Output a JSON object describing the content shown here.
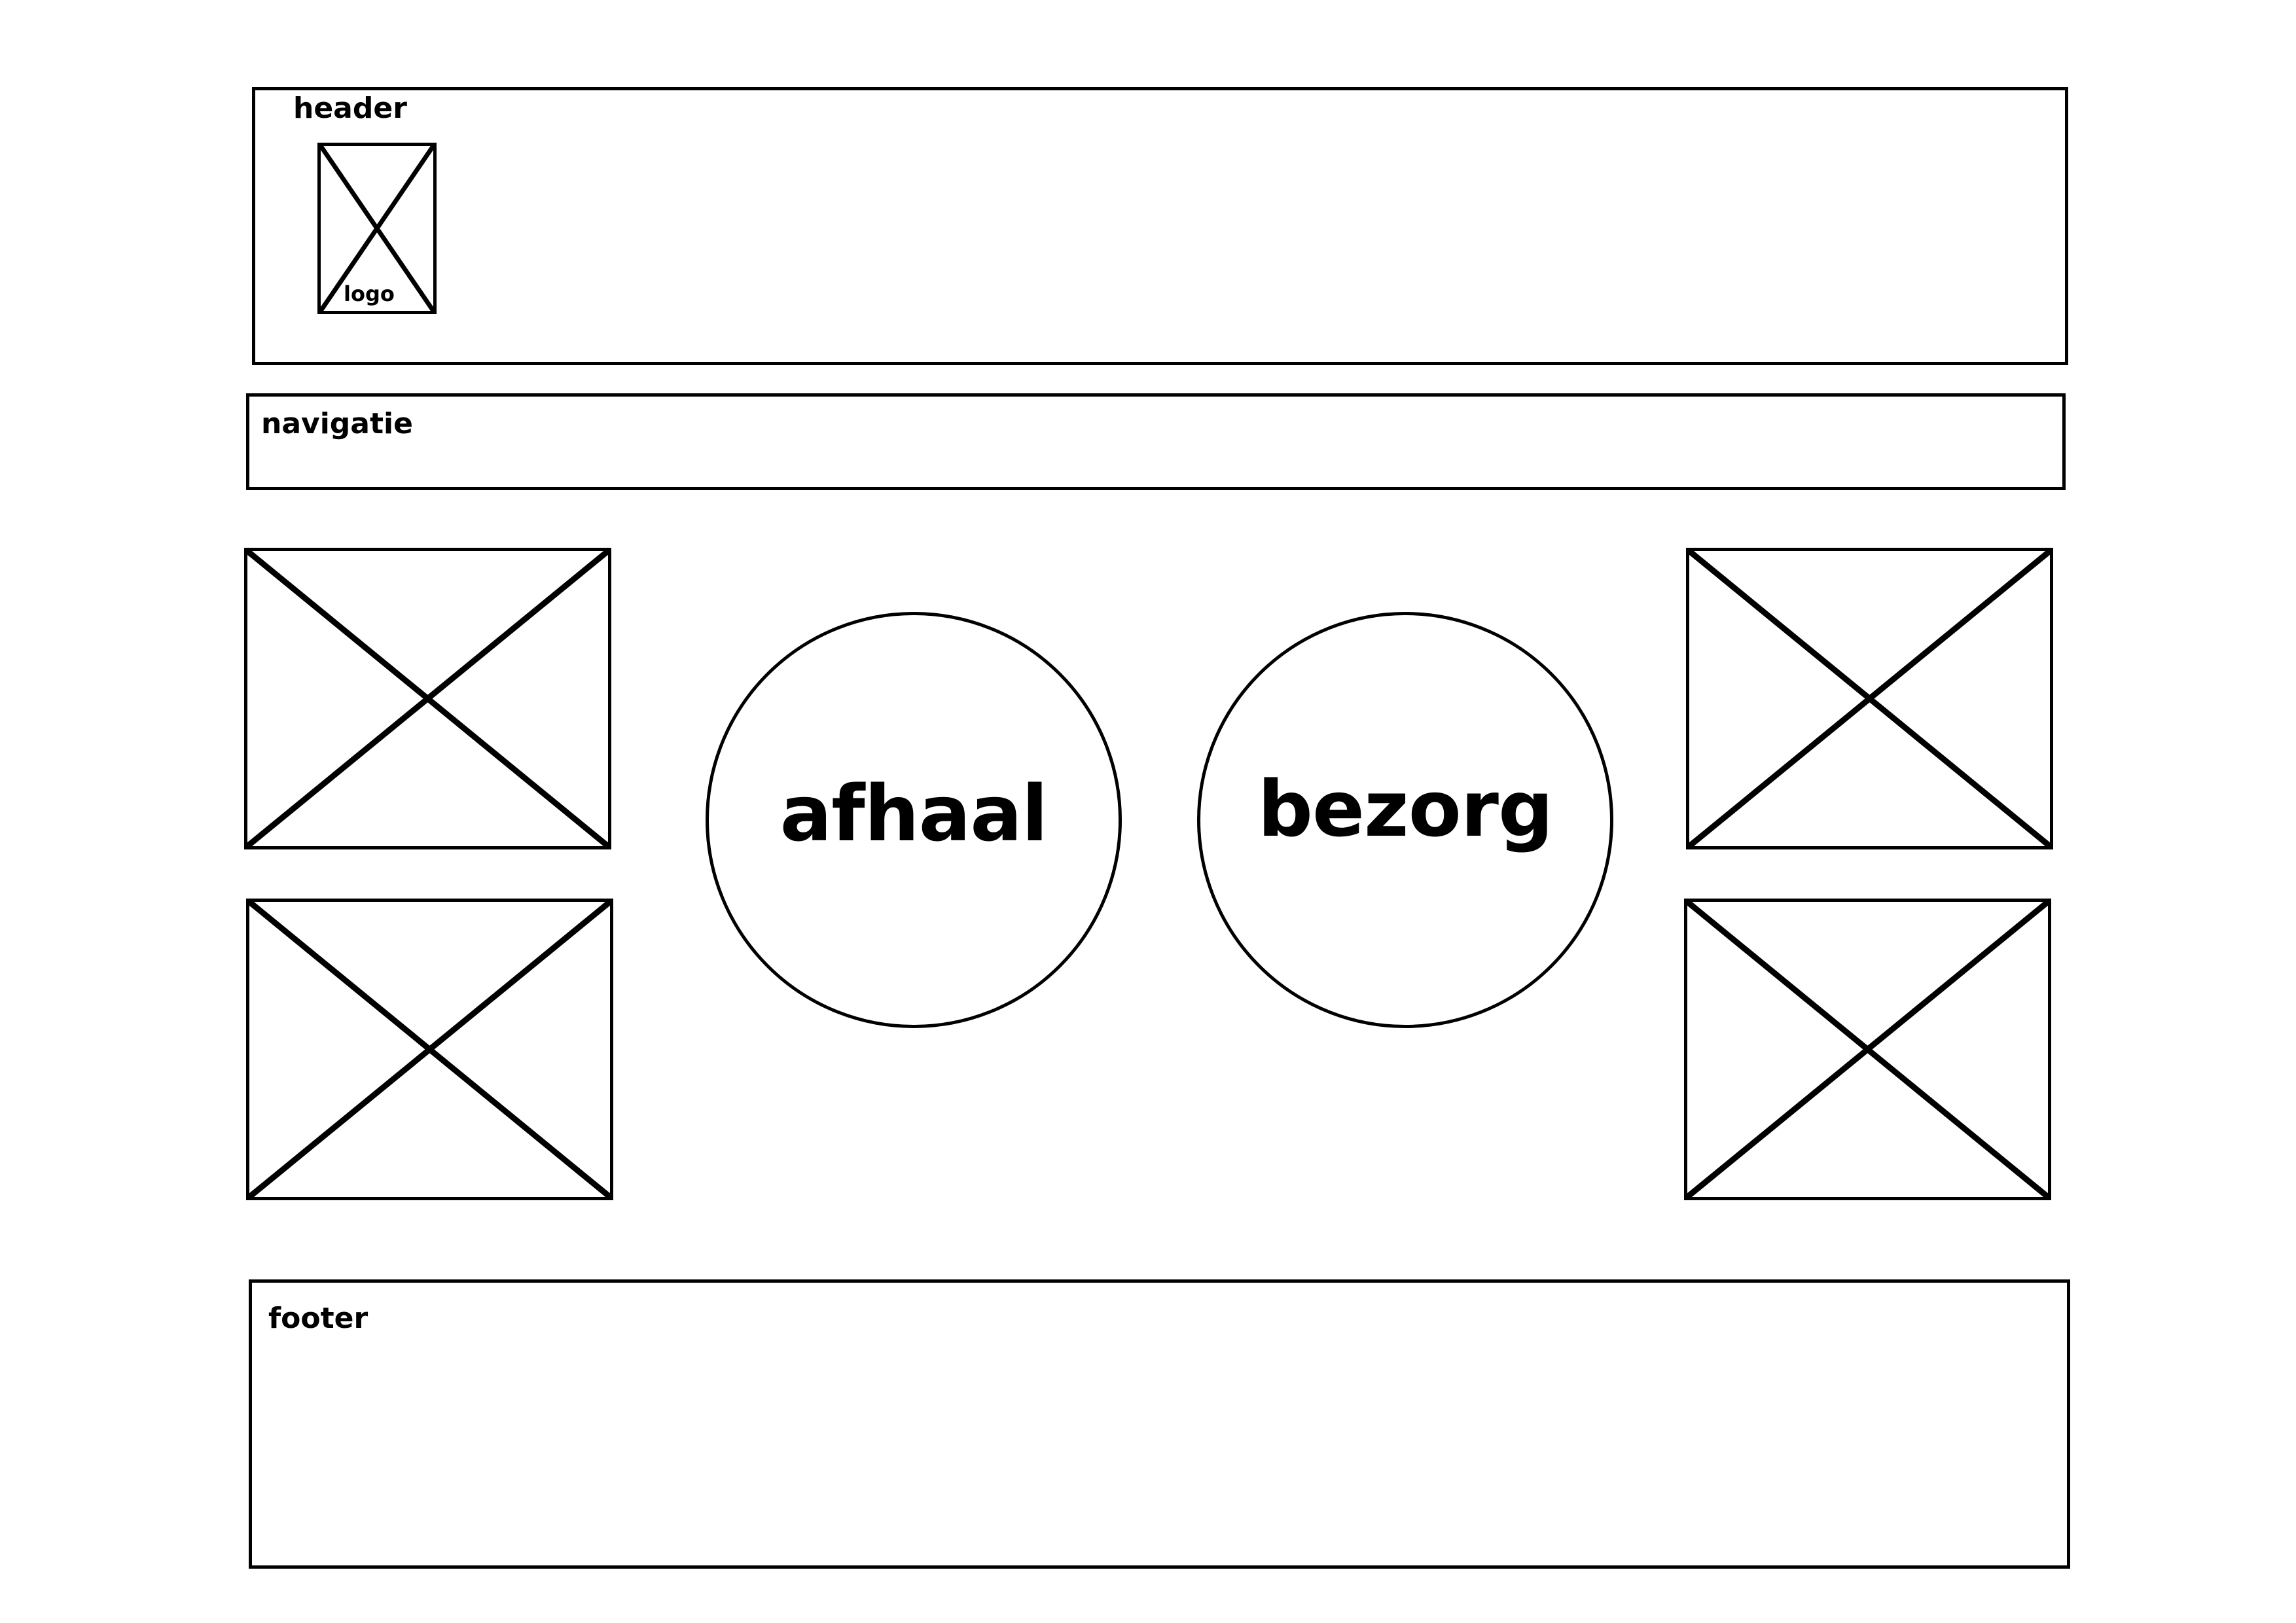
{
  "header": {
    "label": "header",
    "logo": {
      "label": "logo",
      "icon": "image-placeholder-icon"
    }
  },
  "navigation": {
    "label": "navigatie"
  },
  "main": {
    "image_placeholders": [
      {
        "icon": "image-placeholder-icon"
      },
      {
        "icon": "image-placeholder-icon"
      },
      {
        "icon": "image-placeholder-icon"
      },
      {
        "icon": "image-placeholder-icon"
      }
    ],
    "buttons": {
      "pickup_label": "afhaal",
      "delivery_label": "bezorg"
    }
  },
  "footer": {
    "label": "footer"
  },
  "colors": {
    "stroke": "#000000",
    "background": "#ffffff"
  }
}
